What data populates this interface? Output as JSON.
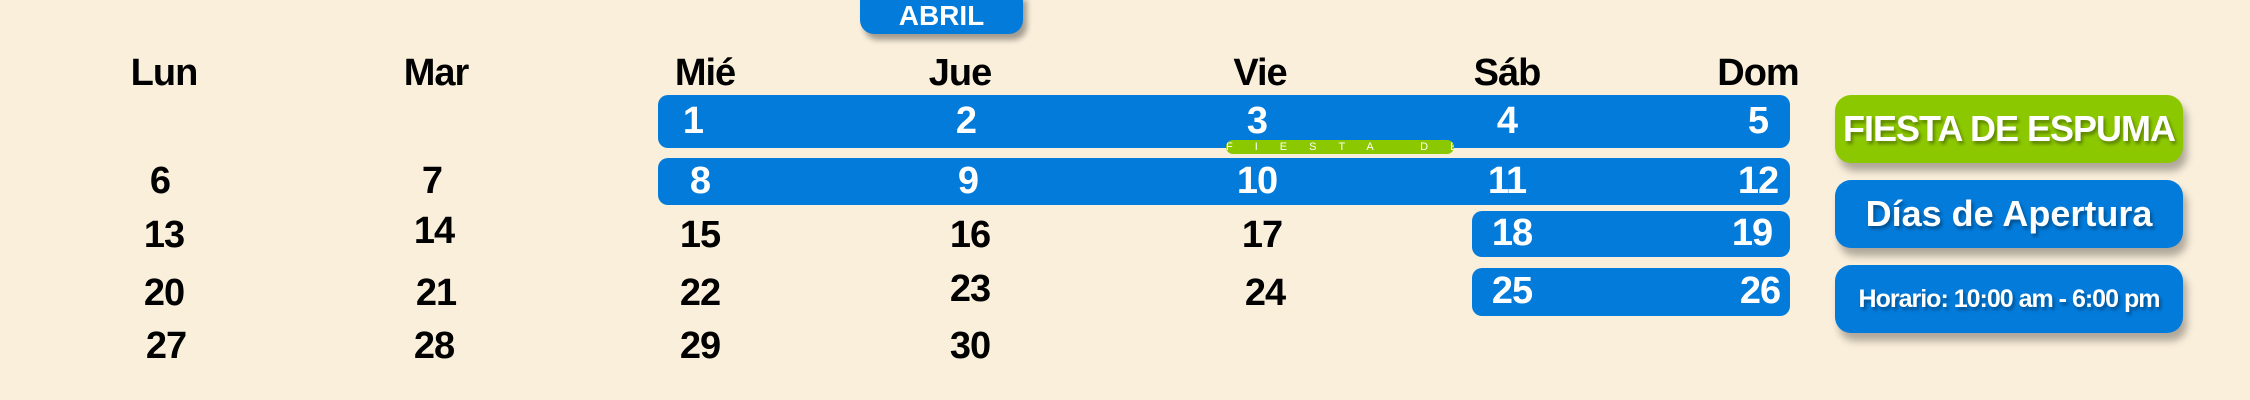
{
  "month": "ABRIL",
  "weekdays": [
    "Lun",
    "Mar",
    "Mié",
    "Jue",
    "Vie",
    "Sáb",
    "Dom"
  ],
  "days": [
    "1",
    "2",
    "3",
    "4",
    "5",
    "6",
    "7",
    "8",
    "9",
    "10",
    "11",
    "12",
    "13",
    "14",
    "15",
    "16",
    "17",
    "18",
    "19",
    "20",
    "21",
    "22",
    "23",
    "24",
    "25",
    "26",
    "27",
    "28",
    "29",
    "30"
  ],
  "event_strip": "FIESTA DE ESPUMA",
  "legend": {
    "event": "FIESTA DE ESPUMA",
    "open_days": "Días de Apertura",
    "hours": "Horario: 10:00 am - 6:00 pm"
  },
  "colors": {
    "open": "#027bdb",
    "event": "#8cc800",
    "background": "#faefdb"
  }
}
